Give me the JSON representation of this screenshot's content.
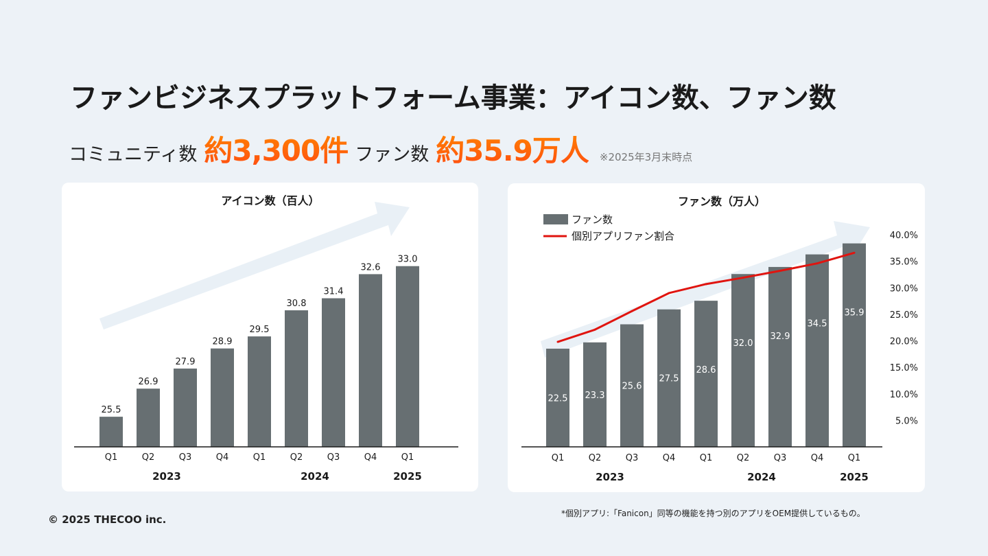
{
  "header": {
    "title": "ファンビジネスプラットフォーム事業：アイコン数、ファン数"
  },
  "summary": {
    "community_label": "コミュニティ数",
    "community_value": "約3,300件",
    "fan_label": "ファン数",
    "fan_value": "約35.9万人",
    "note": "※2025年3月末時点"
  },
  "colors": {
    "bar": "#676f72",
    "line": "#e0140f",
    "arrow": "#e9f0f6",
    "axis": "#1a1a1a",
    "accent_gradient_start": "#ff8a00",
    "accent_gradient_end": "#ff4a12"
  },
  "chart_data": [
    {
      "type": "bar",
      "title": "アイコン数（百人）",
      "categories": [
        "Q1",
        "Q2",
        "Q3",
        "Q4",
        "Q1",
        "Q2",
        "Q3",
        "Q4",
        "Q1"
      ],
      "year_labels": [
        {
          "label": "2023",
          "center_index": 1.5
        },
        {
          "label": "2024",
          "center_index": 5.5
        },
        {
          "label": "2025",
          "center_index": 8
        }
      ],
      "series": [
        {
          "values": [
            25.5,
            26.9,
            27.9,
            28.9,
            29.5,
            30.8,
            31.4,
            32.6,
            33.0
          ]
        }
      ],
      "data_labels": [
        "25.5",
        "26.9",
        "27.9",
        "28.9",
        "29.5",
        "30.8",
        "31.4",
        "32.6",
        "33.0"
      ],
      "ylim": [
        24.0,
        33.4
      ],
      "grid": false,
      "trend_arrow": true
    },
    {
      "type": "bar",
      "title": "ファン数（万人）",
      "categories": [
        "Q1",
        "Q2",
        "Q3",
        "Q4",
        "Q1",
        "Q2",
        "Q3",
        "Q4",
        "Q1"
      ],
      "year_labels": [
        {
          "label": "2023",
          "center_index": 1.5
        },
        {
          "label": "2024",
          "center_index": 5.5
        },
        {
          "label": "2025",
          "center_index": 8
        }
      ],
      "series": [
        {
          "name": "ファン数",
          "type": "bar",
          "axis": "left",
          "values": [
            22.5,
            23.3,
            25.6,
            27.5,
            28.6,
            32.0,
            32.9,
            34.5,
            35.9
          ]
        },
        {
          "name": "個別アプリファン割合",
          "type": "line",
          "axis": "right",
          "values": [
            19.8,
            22.1,
            25.6,
            29.0,
            30.7,
            31.9,
            33.2,
            34.6,
            36.6
          ]
        }
      ],
      "data_labels": [
        "22.5",
        "23.3",
        "25.6",
        "27.5",
        "28.6",
        "32.0",
        "32.9",
        "34.5",
        "35.9"
      ],
      "ylim_left": [
        10.0,
        37.0
      ],
      "ylim_right": [
        0,
        40
      ],
      "right_ticks": [
        "5.0%",
        "10.0%",
        "15.0%",
        "20.0%",
        "25.0%",
        "30.0%",
        "35.0%",
        "40.0%"
      ],
      "legend_position": "top-left",
      "grid": false,
      "trend_arrow": true
    }
  ],
  "footer": {
    "copyright": "© 2025 THECOO inc.",
    "footnote": "*個別アプリ:「Fanicon」同等の機能を持つ別のアプリをOEM提供しているもの。"
  }
}
